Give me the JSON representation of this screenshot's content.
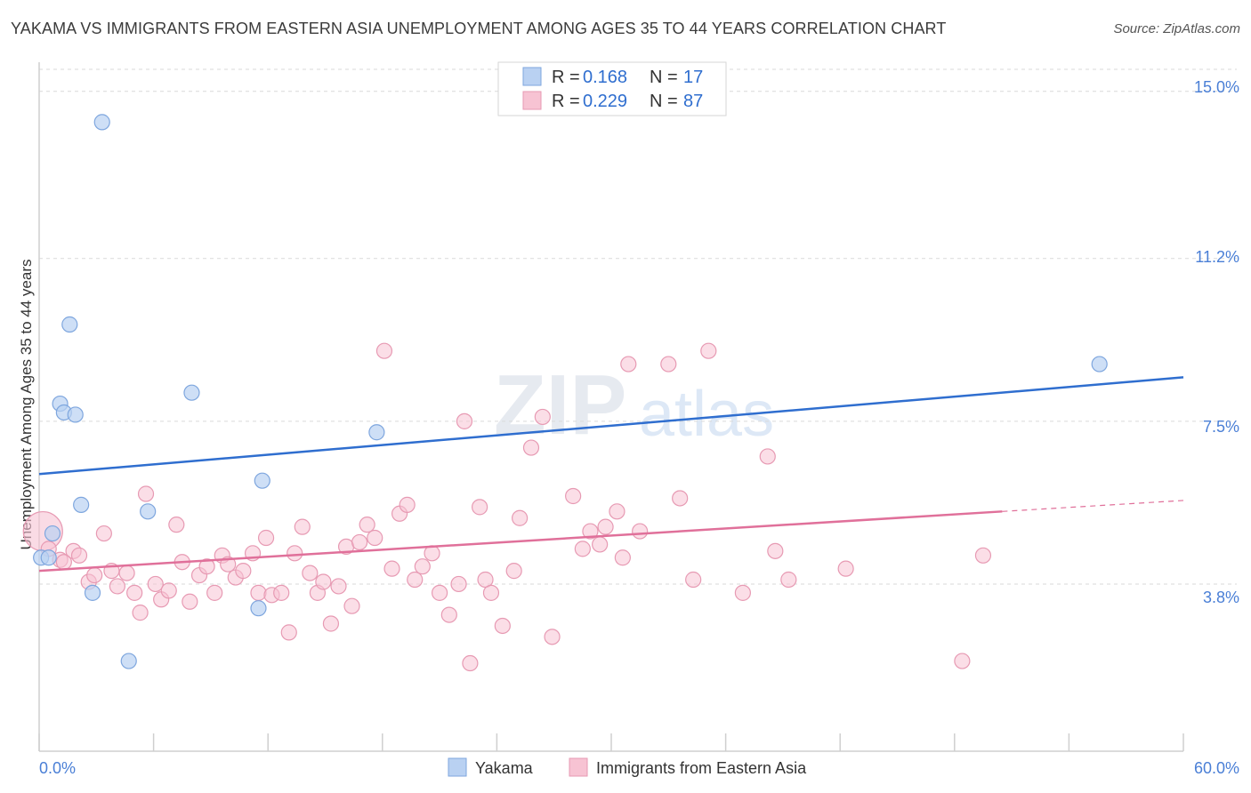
{
  "title": "YAKAMA VS IMMIGRANTS FROM EASTERN ASIA UNEMPLOYMENT AMONG AGES 35 TO 44 YEARS CORRELATION CHART",
  "source": "Source: ZipAtlas.com",
  "watermark": {
    "zip": "ZIP",
    "atlas": "atlas"
  },
  "colors": {
    "blue_fill": "#b9d1f2",
    "blue_stroke": "#7ea6de",
    "blue_line": "#2f6ecf",
    "pink_fill": "#f7c3d3",
    "pink_stroke": "#e79ab3",
    "pink_line": "#e0709a",
    "grid": "#d9d9d9",
    "axis_text": "#4a7fd6"
  },
  "legend": {
    "rows": [
      {
        "r_label": "R =",
        "r_value": "0.168",
        "n_label": "N =",
        "n_value": "17"
      },
      {
        "r_label": "R =",
        "r_value": "0.229",
        "n_label": "N =",
        "n_value": "87"
      }
    ]
  },
  "chart_data": {
    "type": "scatter",
    "title": "YAKAMA VS IMMIGRANTS FROM EASTERN ASIA UNEMPLOYMENT AMONG AGES 35 TO 44 YEARS CORRELATION CHART",
    "xlabel": "",
    "ylabel": "Unemployment Among Ages 35 to 44 years",
    "xlim": [
      0,
      60
    ],
    "ylim": [
      0,
      15.5
    ],
    "x_tick_labels": [
      "0.0%",
      "60.0%"
    ],
    "y_ticks": [
      3.8,
      7.5,
      11.2,
      15.0
    ],
    "y_tick_labels": [
      "3.8%",
      "7.5%",
      "11.2%",
      "15.0%"
    ],
    "grid": true,
    "series": [
      {
        "name": "Yakama",
        "R": 0.168,
        "N": 17,
        "trend": {
          "x": [
            0,
            60
          ],
          "y": [
            6.3,
            8.5
          ]
        },
        "points": [
          {
            "x": 0.1,
            "y": 4.4
          },
          {
            "x": 0.5,
            "y": 4.4
          },
          {
            "x": 0.7,
            "y": 4.95
          },
          {
            "x": 1.1,
            "y": 7.9
          },
          {
            "x": 1.3,
            "y": 7.7
          },
          {
            "x": 1.6,
            "y": 9.7
          },
          {
            "x": 1.9,
            "y": 7.65
          },
          {
            "x": 2.2,
            "y": 5.6
          },
          {
            "x": 2.8,
            "y": 3.6
          },
          {
            "x": 3.3,
            "y": 14.3
          },
          {
            "x": 4.7,
            "y": 2.05
          },
          {
            "x": 5.7,
            "y": 5.45
          },
          {
            "x": 8.0,
            "y": 8.15
          },
          {
            "x": 11.5,
            "y": 3.25
          },
          {
            "x": 11.7,
            "y": 6.15
          },
          {
            "x": 17.7,
            "y": 7.25
          },
          {
            "x": 55.6,
            "y": 8.8
          }
        ]
      },
      {
        "name": "Immigrants from Eastern Asia",
        "R": 0.229,
        "N": 87,
        "trend": {
          "x": [
            0,
            50.5
          ],
          "y": [
            4.1,
            5.45
          ]
        },
        "trend_dashed": {
          "x": [
            50.5,
            60
          ],
          "y": [
            5.45,
            5.7
          ]
        },
        "points": [
          {
            "x": 0.2,
            "y": 5.0,
            "big": true
          },
          {
            "x": 0.5,
            "y": 4.6
          },
          {
            "x": 1.1,
            "y": 4.35
          },
          {
            "x": 1.3,
            "y": 4.3
          },
          {
            "x": 1.8,
            "y": 4.55
          },
          {
            "x": 2.1,
            "y": 4.45
          },
          {
            "x": 2.6,
            "y": 3.85
          },
          {
            "x": 2.9,
            "y": 4.0
          },
          {
            "x": 3.4,
            "y": 4.95
          },
          {
            "x": 3.8,
            "y": 4.1
          },
          {
            "x": 4.1,
            "y": 3.75
          },
          {
            "x": 4.6,
            "y": 4.05
          },
          {
            "x": 5.0,
            "y": 3.6
          },
          {
            "x": 5.3,
            "y": 3.15
          },
          {
            "x": 5.6,
            "y": 5.85
          },
          {
            "x": 6.1,
            "y": 3.8
          },
          {
            "x": 6.4,
            "y": 3.45
          },
          {
            "x": 6.8,
            "y": 3.65
          },
          {
            "x": 7.2,
            "y": 5.15
          },
          {
            "x": 7.5,
            "y": 4.3
          },
          {
            "x": 7.9,
            "y": 3.4
          },
          {
            "x": 8.4,
            "y": 4.0
          },
          {
            "x": 8.8,
            "y": 4.2
          },
          {
            "x": 9.2,
            "y": 3.6
          },
          {
            "x": 9.6,
            "y": 4.45
          },
          {
            "x": 9.9,
            "y": 4.25
          },
          {
            "x": 10.3,
            "y": 3.95
          },
          {
            "x": 10.7,
            "y": 4.1
          },
          {
            "x": 11.2,
            "y": 4.5
          },
          {
            "x": 11.5,
            "y": 3.6
          },
          {
            "x": 11.9,
            "y": 4.85
          },
          {
            "x": 12.2,
            "y": 3.55
          },
          {
            "x": 12.7,
            "y": 3.6
          },
          {
            "x": 13.1,
            "y": 2.7
          },
          {
            "x": 13.4,
            "y": 4.5
          },
          {
            "x": 13.8,
            "y": 5.1
          },
          {
            "x": 14.2,
            "y": 4.05
          },
          {
            "x": 14.6,
            "y": 3.6
          },
          {
            "x": 14.9,
            "y": 3.85
          },
          {
            "x": 15.3,
            "y": 2.9
          },
          {
            "x": 15.7,
            "y": 3.75
          },
          {
            "x": 16.1,
            "y": 4.65
          },
          {
            "x": 16.4,
            "y": 3.3
          },
          {
            "x": 16.8,
            "y": 4.75
          },
          {
            "x": 17.2,
            "y": 5.15
          },
          {
            "x": 17.6,
            "y": 4.85
          },
          {
            "x": 18.1,
            "y": 9.1
          },
          {
            "x": 18.5,
            "y": 4.15
          },
          {
            "x": 18.9,
            "y": 5.4
          },
          {
            "x": 19.3,
            "y": 5.6
          },
          {
            "x": 19.7,
            "y": 3.9
          },
          {
            "x": 20.1,
            "y": 4.2
          },
          {
            "x": 20.6,
            "y": 4.5
          },
          {
            "x": 21.0,
            "y": 3.6
          },
          {
            "x": 21.5,
            "y": 3.1
          },
          {
            "x": 22.0,
            "y": 3.8
          },
          {
            "x": 22.3,
            "y": 7.5
          },
          {
            "x": 22.6,
            "y": 2.0
          },
          {
            "x": 23.1,
            "y": 5.55
          },
          {
            "x": 23.4,
            "y": 3.9
          },
          {
            "x": 23.7,
            "y": 3.6
          },
          {
            "x": 24.3,
            "y": 2.85
          },
          {
            "x": 24.9,
            "y": 4.1
          },
          {
            "x": 25.2,
            "y": 5.3
          },
          {
            "x": 25.8,
            "y": 6.9
          },
          {
            "x": 26.4,
            "y": 7.6
          },
          {
            "x": 26.9,
            "y": 2.6
          },
          {
            "x": 28.0,
            "y": 5.8
          },
          {
            "x": 28.5,
            "y": 4.6
          },
          {
            "x": 28.9,
            "y": 5.0
          },
          {
            "x": 29.4,
            "y": 4.7
          },
          {
            "x": 29.7,
            "y": 5.1
          },
          {
            "x": 30.3,
            "y": 5.45
          },
          {
            "x": 30.6,
            "y": 4.4
          },
          {
            "x": 30.9,
            "y": 8.8
          },
          {
            "x": 31.5,
            "y": 5.0
          },
          {
            "x": 33.0,
            "y": 8.8
          },
          {
            "x": 33.6,
            "y": 5.75
          },
          {
            "x": 34.3,
            "y": 3.9
          },
          {
            "x": 35.1,
            "y": 9.1
          },
          {
            "x": 36.9,
            "y": 3.6
          },
          {
            "x": 38.2,
            "y": 6.7
          },
          {
            "x": 38.6,
            "y": 4.55
          },
          {
            "x": 39.3,
            "y": 3.9
          },
          {
            "x": 42.3,
            "y": 4.15
          },
          {
            "x": 48.4,
            "y": 2.05
          },
          {
            "x": 49.5,
            "y": 4.45
          }
        ]
      }
    ]
  },
  "bottom_legend": {
    "items": [
      "Yakama",
      "Immigrants from Eastern Asia"
    ]
  }
}
